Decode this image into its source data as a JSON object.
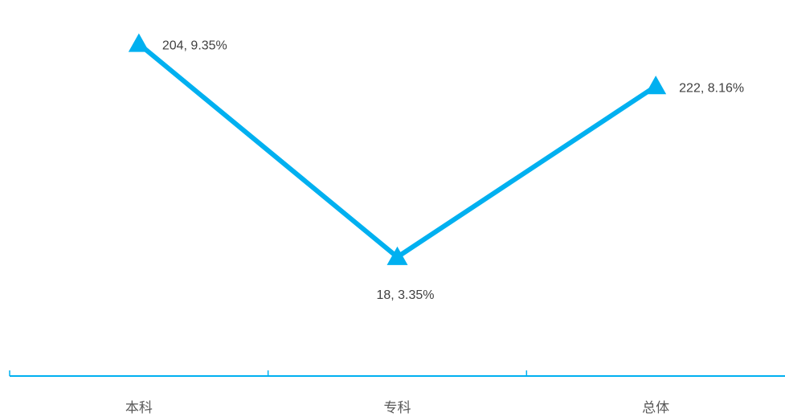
{
  "chart_data": {
    "type": "line",
    "categories": [
      "本科",
      "专科",
      "总体"
    ],
    "series": [
      {
        "values": [
          9.35,
          3.35,
          8.16
        ],
        "counts": [
          204,
          18,
          222
        ],
        "data_labels": [
          "204, 9.35%",
          "18, 3.35%",
          "222, 8.16%"
        ],
        "color": "#00B0F0",
        "marker": "triangle"
      }
    ],
    "title": "",
    "xlabel": "",
    "ylabel": "",
    "ylim": [
      0,
      10
    ],
    "grid": false,
    "legend": "none",
    "axis_color": "#00B0F0",
    "label_color": "#404040",
    "category_color": "#595959"
  }
}
